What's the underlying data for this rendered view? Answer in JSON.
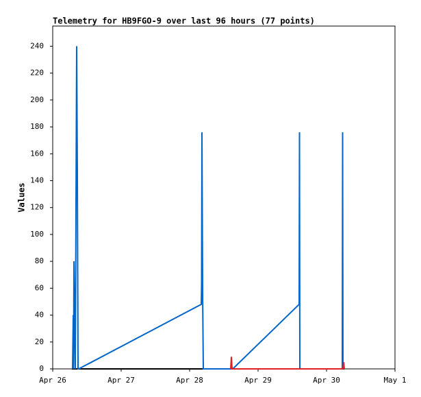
{
  "chart_data": {
    "type": "line",
    "title": "Telemetry for HB9FGO-9 over last 96 hours (77 points)",
    "y_label": "Values",
    "xlim": [
      0,
      5
    ],
    "xticks": [
      {
        "value": 0,
        "label": "Apr 26"
      },
      {
        "value": 1,
        "label": "Apr 27"
      },
      {
        "value": 2,
        "label": "Apr 28"
      },
      {
        "value": 3,
        "label": "Apr 29"
      },
      {
        "value": 4,
        "label": "Apr 30"
      },
      {
        "value": 5,
        "label": "May 1"
      }
    ],
    "ylim": [
      0,
      255
    ],
    "yticks": [
      0,
      20,
      40,
      60,
      80,
      100,
      120,
      140,
      160,
      180,
      200,
      220,
      240
    ],
    "grid": false,
    "series": [
      {
        "color": "#000000",
        "x": [
          0.28,
          4.26
        ],
        "values": [
          0,
          0
        ]
      },
      {
        "color": "#0066cc",
        "x": [
          0.29,
          0.3,
          0.305,
          0.31,
          0.33,
          0.35,
          0.36,
          0.37,
          0.38,
          2.17,
          2.175,
          2.18,
          2.19,
          2.2,
          2.63,
          3.6,
          3.605,
          3.61,
          4.23,
          4.235,
          4.24
        ],
        "values": [
          0,
          40,
          0,
          80,
          0,
          240,
          145,
          0,
          0,
          48,
          64,
          176,
          56,
          0,
          0,
          48,
          176,
          0,
          0,
          176,
          0
        ]
      },
      {
        "color": "#e02020",
        "x": [
          2.6,
          2.61,
          2.62,
          4.24,
          4.25,
          4.26
        ],
        "values": [
          0,
          9,
          0,
          0,
          5,
          0
        ]
      }
    ]
  }
}
